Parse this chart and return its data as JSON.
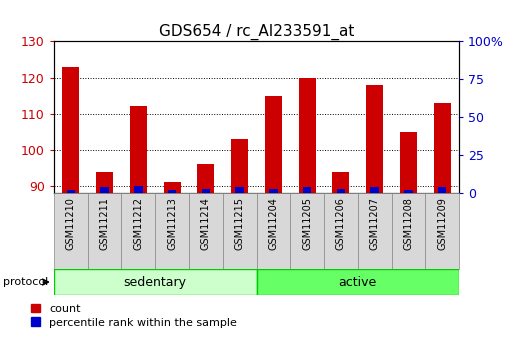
{
  "title": "GDS654 / rc_AI233591_at",
  "samples": [
    "GSM11210",
    "GSM11211",
    "GSM11212",
    "GSM11213",
    "GSM11214",
    "GSM11215",
    "GSM11204",
    "GSM11205",
    "GSM11206",
    "GSM11207",
    "GSM11208",
    "GSM11209"
  ],
  "groups": [
    "sedentary",
    "sedentary",
    "sedentary",
    "sedentary",
    "sedentary",
    "sedentary",
    "active",
    "active",
    "active",
    "active",
    "active",
    "active"
  ],
  "count_values": [
    123,
    94,
    112,
    91,
    96,
    103,
    115,
    120,
    94,
    118,
    105,
    113
  ],
  "percentile_values": [
    2,
    4,
    5,
    2,
    3,
    4,
    3,
    4,
    3,
    4,
    2,
    4
  ],
  "ylim_left": [
    88,
    130
  ],
  "ylim_right": [
    0,
    100
  ],
  "left_ticks": [
    90,
    100,
    110,
    120,
    130
  ],
  "right_ticks": [
    0,
    25,
    50,
    75,
    100
  ],
  "bar_width": 0.5,
  "blue_bar_width": 0.25,
  "count_color": "#cc0000",
  "percentile_color": "#0000cc",
  "sedentary_color": "#ccffcc",
  "active_color": "#66ff66",
  "group_border_color": "#00cc00",
  "bg_color": "#ffffff",
  "plot_bg_color": "#ffffff",
  "xticklabel_bg": "#dddddd",
  "tick_label_color_left": "#cc0000",
  "tick_label_color_right": "#0000cc",
  "title_fontsize": 11,
  "legend_fontsize": 8,
  "protocol_label": "protocol",
  "sedentary_label": "sedentary",
  "active_label": "active",
  "count_legend": "count",
  "percentile_legend": "percentile rank within the sample"
}
